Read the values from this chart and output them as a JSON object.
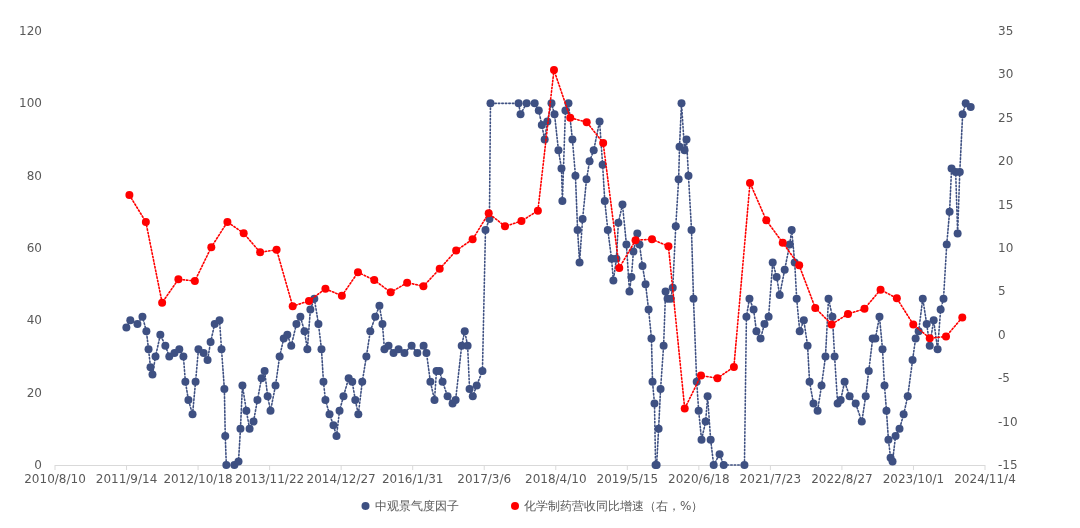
{
  "chart_data": {
    "type": "line",
    "legend": "bottom",
    "grid": false,
    "marker": "circle",
    "line_style": "dotted",
    "xlim": [
      "2010-08-10",
      "2024-11-04"
    ],
    "xticks": [
      {
        "value": "2010-08-10",
        "label": "2010/8/10"
      },
      {
        "value": "2011-09-14",
        "label": "2011/9/14"
      },
      {
        "value": "2012-10-18",
        "label": "2012/10/18"
      },
      {
        "value": "2013-11-22",
        "label": "2013/11/22"
      },
      {
        "value": "2014-12-27",
        "label": "2014/12/27"
      },
      {
        "value": "2016-01-31",
        "label": "2016/1/31"
      },
      {
        "value": "2017-03-06",
        "label": "2017/3/6"
      },
      {
        "value": "2018-04-10",
        "label": "2018/4/10"
      },
      {
        "value": "2019-05-15",
        "label": "2019/5/15"
      },
      {
        "value": "2020-06-18",
        "label": "2020/6/18"
      },
      {
        "value": "2021-07-23",
        "label": "2021/7/23"
      },
      {
        "value": "2022-08-27",
        "label": "2022/8/27"
      },
      {
        "value": "2023-10-01",
        "label": "2023/10/1"
      },
      {
        "value": "2024-11-04",
        "label": "2024/11/4"
      }
    ],
    "ylim": [
      0,
      120
    ],
    "yticks": [
      0,
      20,
      40,
      60,
      80,
      100,
      120
    ],
    "y2lim": [
      -15,
      35
    ],
    "y2ticks": [
      -15,
      -10,
      -5,
      0,
      5,
      10,
      15,
      20,
      25,
      30,
      35
    ],
    "series": [
      {
        "name": "中观景气度因子",
        "color": "#3e5082",
        "x": [
          "2011-09-13",
          "2011-10-05",
          "2011-11-14",
          "2011-12-12",
          "2012-01-03",
          "2012-01-15",
          "2012-01-26",
          "2012-02-06",
          "2012-02-23",
          "2012-03-21",
          "2012-04-18",
          "2012-05-10",
          "2012-06-08",
          "2012-07-05",
          "2012-07-28",
          "2012-08-08",
          "2012-08-25",
          "2012-09-17",
          "2012-10-04",
          "2012-10-20",
          "2012-11-18",
          "2012-12-10",
          "2012-12-27",
          "2013-01-19",
          "2013-02-15",
          "2013-02-26",
          "2013-03-14",
          "2013-03-19",
          "2013-03-25",
          "2013-05-09",
          "2013-06-01",
          "2013-06-12",
          "2013-06-23",
          "2013-07-15",
          "2013-08-02",
          "2013-08-24",
          "2013-09-15",
          "2013-10-08",
          "2013-10-25",
          "2013-11-11",
          "2013-11-27",
          "2013-12-25",
          "2014-01-17",
          "2014-02-09",
          "2014-03-01",
          "2014-03-23",
          "2014-04-21",
          "2014-05-13",
          "2014-06-05",
          "2014-06-21",
          "2014-07-08",
          "2014-07-30",
          "2014-08-22",
          "2014-09-08",
          "2014-09-19",
          "2014-09-30",
          "2014-10-23",
          "2014-11-14",
          "2014-12-01",
          "2014-12-18",
          "2015-01-09",
          "2015-02-07",
          "2015-02-27",
          "2015-03-16",
          "2015-04-02",
          "2015-04-24",
          "2015-05-17",
          "2015-06-08",
          "2015-07-06",
          "2015-07-29",
          "2015-08-15",
          "2015-08-26",
          "2015-09-18",
          "2015-10-16",
          "2015-11-13",
          "2015-12-16",
          "2016-01-25",
          "2016-02-26",
          "2016-04-01",
          "2016-04-17",
          "2016-05-09",
          "2016-06-01",
          "2016-06-12",
          "2016-06-29",
          "2016-07-16",
          "2016-08-13",
          "2016-09-10",
          "2016-09-27",
          "2016-10-31",
          "2016-11-17",
          "2016-12-03",
          "2016-12-14",
          "2017-01-01",
          "2017-01-23",
          "2017-02-24",
          "2017-03-13",
          "2017-04-04",
          "2017-04-10",
          "2017-09-14",
          "2017-09-25",
          "2017-10-29",
          "2017-12-13",
          "2018-01-05",
          "2018-01-22",
          "2018-02-07",
          "2018-02-22",
          "2018-03-17",
          "2018-04-03",
          "2018-04-25",
          "2018-05-12",
          "2018-05-17",
          "2018-06-03",
          "2018-06-20",
          "2018-07-12",
          "2018-07-29",
          "2018-08-10",
          "2018-08-21",
          "2018-09-07",
          "2018-09-29",
          "2018-10-16",
          "2018-11-08",
          "2018-12-11",
          "2018-12-28",
          "2019-01-09",
          "2019-01-26",
          "2019-02-16",
          "2019-02-26",
          "2019-03-15",
          "2019-03-26",
          "2019-04-18",
          "2019-05-10",
          "2019-05-27",
          "2019-06-07",
          "2019-06-18",
          "2019-07-10",
          "2019-07-22",
          "2019-08-08",
          "2019-08-25",
          "2019-09-11",
          "2019-09-27",
          "2019-10-03",
          "2019-10-14",
          "2019-10-20",
          "2019-10-26",
          "2019-11-06",
          "2019-11-17",
          "2019-12-04",
          "2019-12-15",
          "2019-12-26",
          "2020-01-13",
          "2020-01-24",
          "2020-02-10",
          "2020-02-26",
          "2020-03-02",
          "2020-03-13",
          "2020-03-30",
          "2020-04-10",
          "2020-04-21",
          "2020-05-08",
          "2020-05-19",
          "2020-06-06",
          "2020-06-17",
          "2020-07-03",
          "2020-07-26",
          "2020-08-06",
          "2020-08-23",
          "2020-09-09",
          "2020-10-12",
          "2020-11-04",
          "2021-02-28",
          "2021-03-11",
          "2021-03-28",
          "2021-04-20",
          "2021-05-06",
          "2021-05-29",
          "2021-06-20",
          "2021-07-13",
          "2021-08-05",
          "2021-08-27",
          "2021-09-13",
          "2021-10-11",
          "2021-11-08",
          "2021-11-19",
          "2021-12-06",
          "2021-12-17",
          "2022-01-03",
          "2022-01-26",
          "2022-02-16",
          "2022-02-27",
          "2022-03-21",
          "2022-04-13",
          "2022-05-05",
          "2022-05-27",
          "2022-06-13",
          "2022-07-05",
          "2022-07-17",
          "2022-08-03",
          "2022-08-20",
          "2022-09-11",
          "2022-10-09",
          "2022-11-12",
          "2022-12-16",
          "2023-01-07",
          "2023-01-24",
          "2023-02-15",
          "2023-03-02",
          "2023-03-25",
          "2023-04-11",
          "2023-04-22",
          "2023-05-03",
          "2023-05-14",
          "2023-05-26",
          "2023-06-06",
          "2023-06-23",
          "2023-07-15",
          "2023-08-07",
          "2023-08-30",
          "2023-09-26",
          "2023-10-13",
          "2023-10-30",
          "2023-11-22",
          "2023-12-14",
          "2023-12-31",
          "2024-01-22",
          "2024-02-13",
          "2024-03-01",
          "2024-03-17",
          "2024-04-04",
          "2024-04-20",
          "2024-05-01",
          "2024-05-24",
          "2024-06-04",
          "2024-06-16",
          "2024-07-02",
          "2024-07-19",
          "2024-08-16"
        ],
        "values": [
          38,
          40,
          39,
          41,
          37,
          32,
          27,
          25,
          30,
          36,
          33,
          30,
          31,
          32,
          30,
          23,
          18,
          14,
          23,
          32,
          31,
          29,
          34,
          39,
          40,
          32,
          21,
          8,
          0,
          0,
          1,
          10,
          22,
          15,
          10,
          12,
          18,
          24,
          26,
          19,
          15,
          22,
          30,
          35,
          36,
          33,
          39,
          41,
          37,
          32,
          43,
          46,
          39,
          32,
          23,
          18,
          14,
          11,
          8,
          15,
          19,
          24,
          23,
          18,
          14,
          23,
          30,
          37,
          41,
          44,
          39,
          32,
          33,
          31,
          32,
          31,
          33,
          31,
          33,
          31,
          23,
          18,
          26,
          26,
          23,
          19,
          17,
          18,
          33,
          37,
          33,
          21,
          19,
          22,
          26,
          65,
          68,
          100,
          100,
          97,
          100,
          100,
          98,
          94,
          90,
          95,
          100,
          97,
          87,
          82,
          73,
          98,
          100,
          90,
          80,
          65,
          56,
          68,
          79,
          84,
          87,
          95,
          83,
          73,
          65,
          57,
          51,
          57,
          67,
          72,
          61,
          48,
          52,
          59,
          64,
          61,
          55,
          50,
          43,
          35,
          23,
          17,
          0,
          0,
          10,
          21,
          33,
          48,
          46,
          46,
          49,
          66,
          79,
          88,
          100,
          87,
          90,
          80,
          65,
          46,
          23,
          15,
          7,
          12,
          19,
          7,
          0,
          3,
          0,
          0,
          41,
          46,
          43,
          37,
          35,
          39,
          41,
          56,
          52,
          47,
          54,
          61,
          65,
          56,
          46,
          37,
          40,
          33,
          23,
          17,
          15,
          22,
          30,
          46,
          41,
          30,
          17,
          18,
          23,
          19,
          17,
          12,
          19,
          26,
          35,
          35,
          41,
          32,
          22,
          15,
          7,
          2,
          1,
          8,
          10,
          14,
          19,
          29,
          35,
          37,
          46,
          39,
          33,
          40,
          32,
          43,
          46,
          61,
          70,
          82,
          81,
          64,
          81,
          97,
          100,
          99
        ]
      },
      {
        "name": "化学制药营收同比增速（右，%）",
        "color": "#ff0000",
        "axis": "y2",
        "x": [
          "2011-09-30",
          "2011-12-31",
          "2012-03-31",
          "2012-06-30",
          "2012-09-30",
          "2012-12-31",
          "2013-03-31",
          "2013-06-30",
          "2013-09-30",
          "2013-12-31",
          "2014-03-31",
          "2014-06-30",
          "2014-09-30",
          "2014-12-31",
          "2015-03-31",
          "2015-06-30",
          "2015-09-30",
          "2015-12-31",
          "2016-03-31",
          "2016-06-30",
          "2016-09-30",
          "2016-12-31",
          "2017-03-31",
          "2017-06-30",
          "2017-09-30",
          "2017-12-31",
          "2018-03-31",
          "2018-06-30",
          "2018-09-30",
          "2018-12-31",
          "2019-03-31",
          "2019-06-30",
          "2019-09-30",
          "2019-12-31",
          "2020-03-31",
          "2020-06-30",
          "2020-09-30",
          "2020-12-31",
          "2021-03-31",
          "2021-06-30",
          "2021-09-30",
          "2021-12-31",
          "2022-03-31",
          "2022-06-30",
          "2022-09-30",
          "2022-12-31",
          "2023-03-31",
          "2023-06-30",
          "2023-09-30",
          "2023-12-31",
          "2024-03-31",
          "2024-06-30"
        ],
        "values": [
          16.1,
          13.0,
          3.7,
          6.4,
          6.2,
          10.1,
          13.0,
          11.7,
          9.5,
          9.8,
          3.3,
          3.9,
          5.3,
          4.5,
          7.2,
          6.3,
          4.9,
          6.0,
          5.6,
          7.6,
          9.7,
          11.0,
          14.0,
          12.5,
          13.1,
          14.3,
          30.5,
          25.0,
          24.5,
          22.1,
          7.7,
          10.9,
          11.0,
          10.2,
          -8.5,
          -4.7,
          -5.0,
          -3.7,
          17.5,
          13.2,
          10.6,
          8.0,
          3.1,
          1.2,
          2.4,
          3.0,
          5.2,
          4.2,
          1.2,
          -0.4,
          -0.2,
          2.0
        ]
      }
    ]
  }
}
